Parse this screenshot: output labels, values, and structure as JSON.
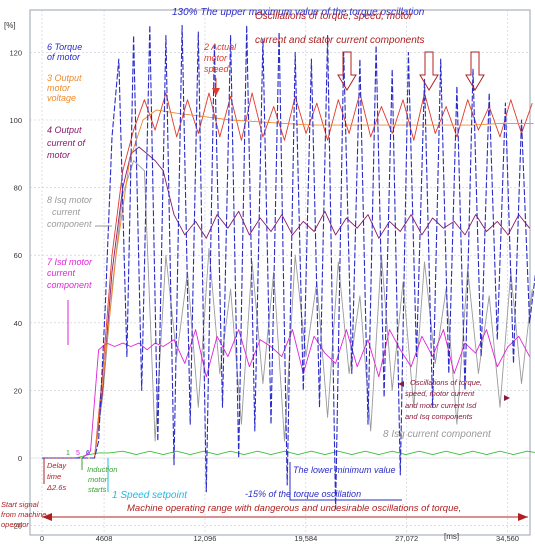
{
  "chart_data": {
    "type": "line",
    "y_unit": "[%]",
    "x_unit": "[ms]",
    "ylim": [
      -20,
      130
    ],
    "xlim": [
      0,
      37000
    ],
    "y_ticks": [
      -20,
      0,
      20,
      40,
      60,
      80,
      100,
      120
    ],
    "x_ticks": [
      {
        "value": 0,
        "label": "0"
      },
      {
        "value": 4608,
        "label": "4608"
      },
      {
        "value": 12096,
        "label": "12,096"
      },
      {
        "value": 19584,
        "label": "19,584"
      },
      {
        "value": 27072,
        "label": "27,072"
      },
      {
        "value": 34560,
        "label": "34,560"
      }
    ],
    "grid": true,
    "series": [
      {
        "name": "6 Torque of motor",
        "color": "#2b2bc8",
        "x": [
          0,
          1500,
          3000,
          3900,
          4200,
          4700,
          5200,
          5700,
          6300,
          6800,
          7400,
          8000,
          8600,
          9200,
          9800,
          10400,
          11000,
          11600,
          12200,
          12800,
          13400,
          14000,
          14600,
          15200,
          15800,
          16400,
          17000,
          17600,
          18200,
          18800,
          19400,
          20000,
          20600,
          21200,
          21800,
          22400,
          23000,
          23600,
          24200,
          24800,
          25400,
          26000,
          26600,
          27200,
          27800,
          28400,
          29000,
          29600,
          30200,
          30800,
          31400,
          32000,
          32600,
          33200,
          33800,
          34400,
          35000,
          35600,
          36200,
          36800
        ],
        "y": [
          0,
          0,
          0,
          0,
          5,
          45,
          95,
          118,
          30,
          125,
          20,
          128,
          5,
          125,
          -2,
          128,
          10,
          126,
          -10,
          122,
          15,
          125,
          0,
          128,
          8,
          124,
          10,
          126,
          -8,
          120,
          20,
          118,
          15,
          125,
          -15,
          120,
          25,
          118,
          10,
          122,
          18,
          115,
          -5,
          120,
          30,
          112,
          15,
          118,
          25,
          110,
          20,
          115,
          30,
          108,
          35,
          105,
          28,
          100,
          40,
          60
        ]
      },
      {
        "name": "2 Actual motor speed",
        "color": "#e03a2a",
        "x": [
          0,
          3900,
          4500,
          5200,
          6000,
          6800,
          7600,
          8400,
          9200,
          10000,
          10800,
          11600,
          12400,
          13200,
          14000,
          14800,
          15600,
          16400,
          17200,
          18000,
          18800,
          19600,
          20400,
          21200,
          22000,
          22800,
          23600,
          24400,
          25200,
          26000,
          26800,
          27600,
          28400,
          29200,
          30000,
          30800,
          31600,
          32400,
          33200,
          34000,
          34800,
          35600,
          36400
        ],
        "y": [
          0,
          0,
          25,
          60,
          85,
          97,
          106,
          97,
          108,
          95,
          106,
          96,
          108,
          95,
          107,
          94,
          108,
          95,
          104,
          94,
          107,
          96,
          105,
          94,
          106,
          96,
          108,
          95,
          104,
          96,
          106,
          94,
          108,
          96,
          104,
          95,
          106,
          97,
          104,
          95,
          106,
          96,
          105
        ]
      },
      {
        "name": "3 Output motor voltage",
        "color": "#f08a2a",
        "x": [
          0,
          3900,
          4500,
          5500,
          6500,
          7500,
          8500,
          10000,
          12000,
          14000,
          16000,
          18000,
          20000,
          22000,
          24000,
          26000,
          28000,
          30000,
          32000,
          34000,
          36500
        ],
        "y": [
          0,
          0,
          22,
          60,
          88,
          100,
          103,
          102,
          101,
          100,
          99.5,
          99,
          98.5,
          98.5,
          98.5,
          98.5,
          98.5,
          98.5,
          98.5,
          99,
          99
        ]
      },
      {
        "name": "4 Output current of motor",
        "color": "#8a1a6a",
        "x": [
          0,
          1500,
          3000,
          3900,
          4500,
          5200,
          6000,
          6600,
          7200,
          7800,
          8400,
          9000,
          9800,
          10600,
          11400,
          12200,
          13000,
          13800,
          14600,
          15400,
          16200,
          17000,
          17800,
          18600,
          19400,
          20200,
          21000,
          21800,
          22600,
          23400,
          24200,
          25000,
          25800,
          26600,
          27400,
          28200,
          29000,
          29800,
          30600,
          31400,
          32200,
          33000,
          33800,
          34600,
          35400,
          36200
        ],
        "y": [
          0,
          0,
          0,
          0,
          20,
          55,
          80,
          90,
          92,
          90,
          88,
          85,
          72,
          66,
          70,
          65,
          72,
          68,
          73,
          66,
          71,
          67,
          72,
          66,
          70,
          67,
          73,
          66,
          71,
          68,
          72,
          65,
          70,
          67,
          72,
          66,
          71,
          68,
          70,
          66,
          72,
          67,
          70,
          66,
          72,
          68
        ]
      },
      {
        "name": "7 Isd motor current component",
        "color": "#e024d8",
        "x": [
          0,
          1000,
          2000,
          3000,
          3600,
          4200,
          4800,
          5400,
          6000,
          6600,
          7200,
          7800,
          8400,
          9000,
          9800,
          10600,
          11400,
          12200,
          13000,
          13800,
          14600,
          15400,
          16200,
          17000,
          17800,
          18600,
          19400,
          20200,
          21000,
          21800,
          22600,
          23400,
          24200,
          25000,
          25800,
          26600,
          27400,
          28200,
          29000,
          29800,
          30600,
          31400,
          32200,
          33000,
          33800,
          34600,
          35400,
          36200
        ],
        "y": [
          0,
          0,
          0,
          0,
          2,
          32,
          34,
          33,
          34,
          33,
          34,
          32,
          34,
          33,
          35,
          28,
          38,
          24,
          36,
          30,
          38,
          27,
          35,
          33,
          30,
          38,
          25,
          36,
          31,
          28,
          38,
          27,
          35,
          24,
          38,
          32,
          27,
          36,
          30,
          38,
          25,
          34,
          31,
          38,
          27,
          33,
          36,
          30
        ]
      },
      {
        "name": "8 Isq motor current component",
        "color": "#9a9a9a",
        "x": [
          0,
          3900,
          4500,
          5200,
          6000,
          6800,
          7600,
          8400,
          9200,
          10000,
          10800,
          11600,
          12400,
          13200,
          14000,
          14800,
          15600,
          16400,
          17200,
          18000,
          18800,
          19600,
          20400,
          21200,
          22000,
          22800,
          23600,
          24400,
          25200,
          26000,
          26800,
          27600,
          28400,
          29200,
          30000,
          30800,
          31600,
          32400,
          33200,
          34000,
          34800,
          35600,
          36400
        ],
        "y": [
          0,
          0,
          18,
          50,
          78,
          88,
          85,
          5,
          60,
          30,
          55,
          15,
          62,
          25,
          50,
          10,
          58,
          22,
          55,
          5,
          60,
          30,
          52,
          12,
          58,
          25,
          48,
          8,
          60,
          20,
          52,
          15,
          58,
          28,
          50,
          10,
          56,
          25,
          48,
          15,
          55,
          22,
          50
        ]
      },
      {
        "name": "1 Speed setpoint",
        "color": "#3ac03a",
        "x": [
          0,
          2500,
          3500,
          4200,
          5000,
          6000,
          7000,
          8000,
          9000,
          10000,
          11000,
          12000,
          13000,
          14000,
          15000,
          16000,
          17000,
          18000,
          19000,
          20000,
          21000,
          22000,
          23000,
          24000,
          25000,
          26000,
          27000,
          28000,
          29000,
          30000,
          31000,
          32000,
          33000,
          34000,
          35000,
          36000,
          36800
        ],
        "y": [
          0,
          0,
          1,
          1.5,
          1.5,
          2,
          1,
          2,
          1,
          2,
          1,
          2,
          1,
          2,
          1,
          2,
          1,
          2,
          1,
          2,
          1,
          2,
          1,
          2,
          1,
          2,
          1,
          2,
          1,
          2,
          1,
          2,
          1,
          2,
          1,
          2,
          1.5
        ]
      }
    ],
    "labels": [
      {
        "text": "6 Torque",
        "color": "#2b2bc8"
      },
      {
        "text": "of motor",
        "color": "#2b2bc8"
      },
      {
        "text": "3 Output",
        "color": "#f08a2a"
      },
      {
        "text": "motor",
        "color": "#f08a2a"
      },
      {
        "text": "voltage",
        "color": "#f08a2a"
      },
      {
        "text": "4 Output",
        "color": "#8a1a6a"
      },
      {
        "text": "current of",
        "color": "#8a1a6a"
      },
      {
        "text": "motor",
        "color": "#8a1a6a"
      },
      {
        "text": "8 Isq motor",
        "color": "#9a9a9a"
      },
      {
        "text": "current",
        "color": "#9a9a9a"
      },
      {
        "text": "component",
        "color": "#9a9a9a"
      },
      {
        "text": "7 Isd motor",
        "color": "#e024d8"
      },
      {
        "text": "current",
        "color": "#e024d8"
      },
      {
        "text": "component",
        "color": "#e024d8"
      },
      {
        "text": "2 Actual",
        "color": "#e03a2a"
      },
      {
        "text": "motor",
        "color": "#e03a2a"
      },
      {
        "text": "speed",
        "color": "#e03a2a"
      },
      {
        "text": "130% The upper maximum value of the torque oscillation",
        "color": "#2b2bc8"
      },
      {
        "text": "Oscillations of torque, speed, motor",
        "color": "#b02020"
      },
      {
        "text": "current and stator current components",
        "color": "#b02020"
      },
      {
        "text": "Oscillations of torque,",
        "color": "#8a1a3a"
      },
      {
        "text": "speed, motor current",
        "color": "#8a1a3a"
      },
      {
        "text": "and motor current Isd",
        "color": "#8a1a3a"
      },
      {
        "text": "and Isq components",
        "color": "#8a1a3a"
      },
      {
        "text": "8 Isq current component",
        "color": "#9a9a9a"
      },
      {
        "text": "The lower minimum value",
        "color": "#2b2bc8"
      },
      {
        "text": "-15%  of the torque oscillation",
        "color": "#2b2bc8"
      },
      {
        "text": "1 Speed setpoint",
        "color": "#22b8e0"
      },
      {
        "text": "Induction",
        "color": "#3aa03a"
      },
      {
        "text": "motor",
        "color": "#3aa03a"
      },
      {
        "text": "starts",
        "color": "#3aa03a"
      },
      {
        "text": "Delay",
        "color": "#b02020"
      },
      {
        "text": "time",
        "color": "#b02020"
      },
      {
        "text": "Δ2.6s",
        "color": "#b02020"
      },
      {
        "text": "Start signal",
        "color": "#b02020"
      },
      {
        "text": "from machine",
        "color": "#b02020"
      },
      {
        "text": "operator",
        "color": "#b02020"
      },
      {
        "text": "Machine operating range with dangerous and undesirable oscillations of torque,",
        "color": "#b02020"
      }
    ],
    "markers": [
      "1",
      "5",
      "6"
    ]
  }
}
